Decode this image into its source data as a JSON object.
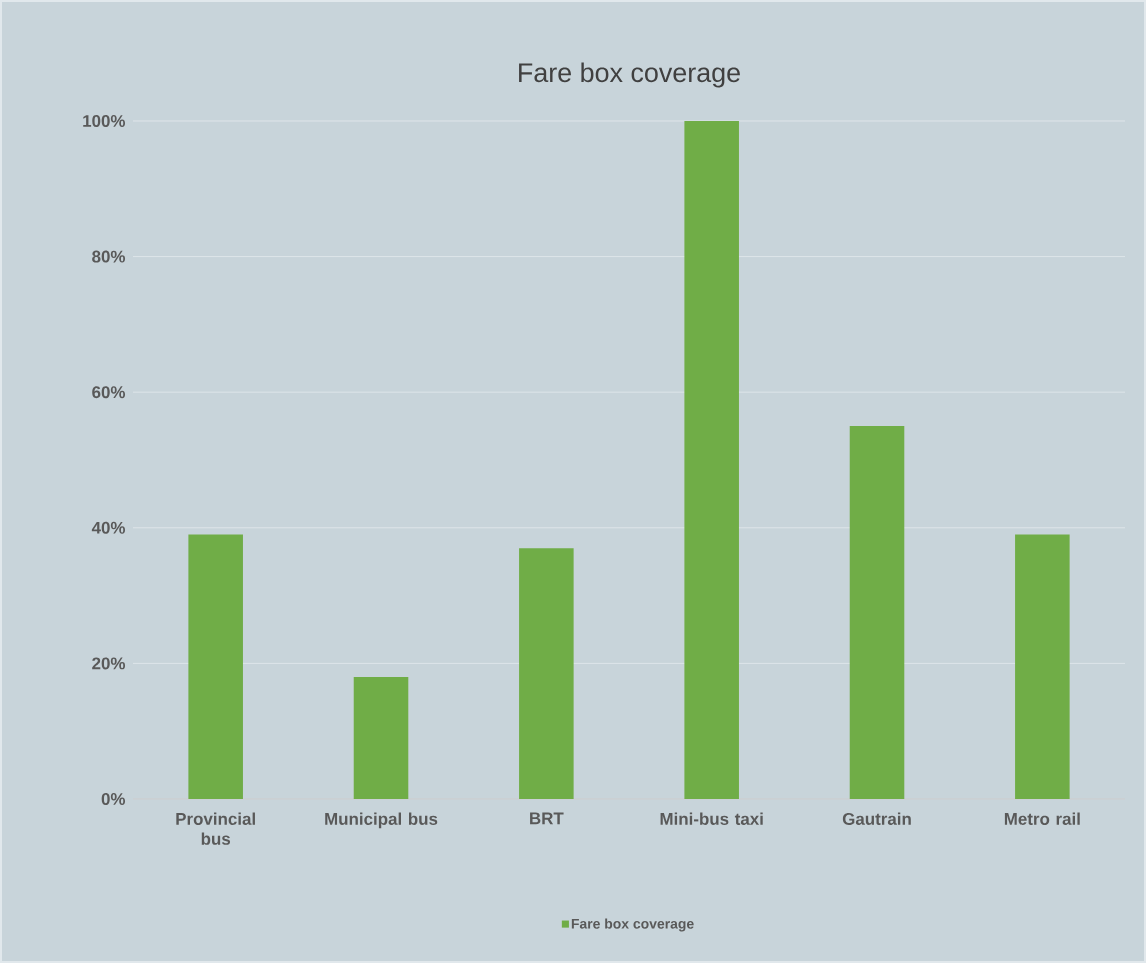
{
  "chart_data": {
    "type": "bar",
    "title": "Fare box coverage",
    "categories": [
      "Provincial bus",
      "Municipal bus",
      "BRT",
      "Mini-bus taxi",
      "Gautrain",
      "Metro rail"
    ],
    "series": [
      {
        "name": "Fare box coverage",
        "color": "#70ad47",
        "values": [
          39,
          18,
          37,
          100,
          55,
          39
        ]
      }
    ],
    "ylim": [
      0,
      100
    ],
    "yticks": [
      {
        "value": 0,
        "label": "0%"
      },
      {
        "value": 20,
        "label": "20%"
      },
      {
        "value": 40,
        "label": "40%"
      },
      {
        "value": 60,
        "label": "60%"
      },
      {
        "value": 80,
        "label": "80%"
      },
      {
        "value": 100,
        "label": "100%"
      }
    ],
    "grid": "y",
    "legend": "bottom"
  }
}
